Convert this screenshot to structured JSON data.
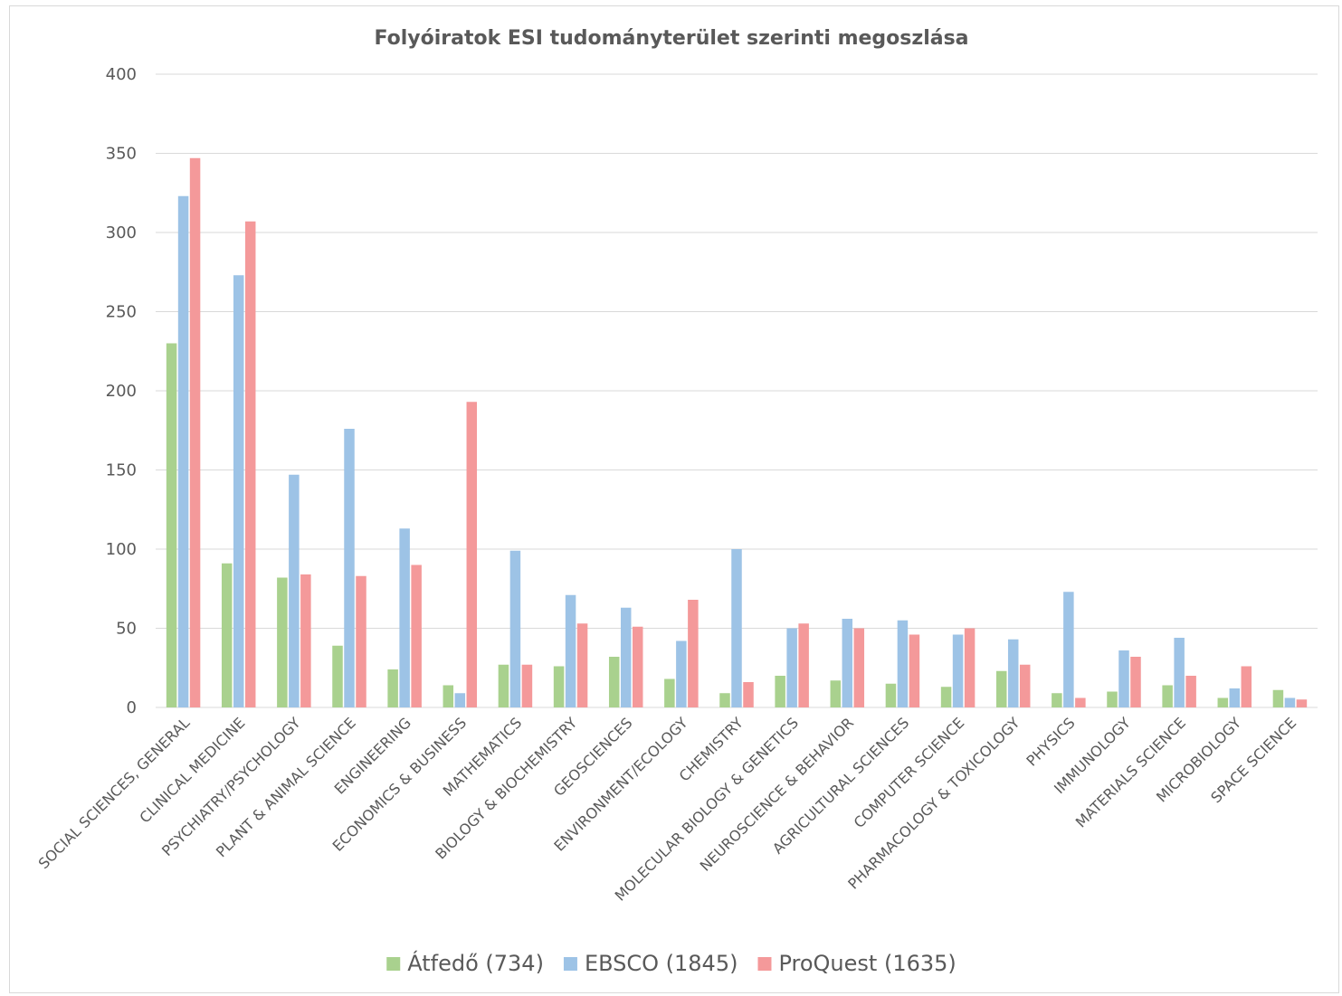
{
  "chart_data": {
    "type": "bar",
    "title": "Folyóiratok ESI tudományterület szerinti megoszlása",
    "xlabel": "",
    "ylabel": "",
    "ylim": [
      0,
      400
    ],
    "yticks": [
      0,
      50,
      100,
      150,
      200,
      250,
      300,
      350,
      400
    ],
    "grid": true,
    "legend_position": "bottom",
    "categories": [
      "SOCIAL SCIENCES, GENERAL",
      "CLINICAL MEDICINE",
      "PSYCHIATRY/PSYCHOLOGY",
      "PLANT & ANIMAL SCIENCE",
      "ENGINEERING",
      "ECONOMICS & BUSINESS",
      "MATHEMATICS",
      "BIOLOGY & BIOCHEMISTRY",
      "GEOSCIENCES",
      "ENVIRONMENT/ECOLOGY",
      "CHEMISTRY",
      "MOLECULAR BIOLOGY & GENETICS",
      "NEUROSCIENCE & BEHAVIOR",
      "AGRICULTURAL SCIENCES",
      "COMPUTER SCIENCE",
      "PHARMACOLOGY & TOXICOLOGY",
      "PHYSICS",
      "IMMUNOLOGY",
      "MATERIALS SCIENCE",
      "MICROBIOLOGY",
      "SPACE SCIENCE"
    ],
    "series": [
      {
        "name": "Átfedő (734)",
        "color": "#a9d18e",
        "values": [
          230,
          91,
          82,
          39,
          24,
          14,
          27,
          26,
          32,
          18,
          9,
          20,
          17,
          15,
          13,
          23,
          9,
          10,
          14,
          6,
          11
        ]
      },
      {
        "name": "EBSCO (1845)",
        "color": "#9dc3e6",
        "values": [
          323,
          273,
          147,
          176,
          113,
          9,
          99,
          71,
          63,
          42,
          100,
          50,
          56,
          55,
          46,
          43,
          73,
          36,
          44,
          12,
          6
        ]
      },
      {
        "name": "ProQuest (1635)",
        "color": "#f4999a",
        "values": [
          347,
          307,
          84,
          83,
          90,
          193,
          27,
          53,
          51,
          68,
          16,
          53,
          50,
          46,
          50,
          27,
          6,
          32,
          20,
          26,
          5
        ]
      }
    ]
  }
}
